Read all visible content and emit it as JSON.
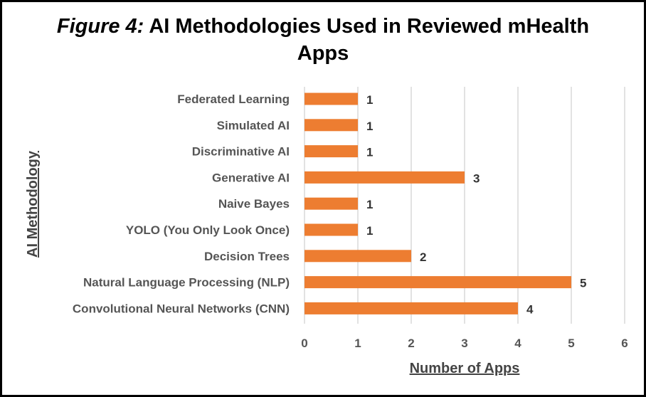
{
  "chart_data": {
    "type": "bar",
    "orientation": "horizontal",
    "title_prefix": "Figure 4:",
    "title_main": "AI Methodologies Used in Reviewed mHealth Apps",
    "xlabel": "Number of Apps",
    "ylabel": "AI Methodology",
    "categories": [
      "Federated Learning",
      "Simulated AI",
      "Discriminative AI",
      "Generative AI",
      "Naive Bayes",
      "YOLO (You Only Look Once)",
      "Decision Trees",
      "Natural Language Processing (NLP)",
      "Convolutional Neural Networks (CNN)"
    ],
    "values": [
      1,
      1,
      1,
      3,
      1,
      1,
      2,
      5,
      4
    ],
    "xlim": [
      0,
      6
    ],
    "xticks": [
      0,
      1,
      2,
      3,
      4,
      5,
      6
    ],
    "grid": "vertical",
    "bar_color": "#ED7D31",
    "data_labels": true
  }
}
